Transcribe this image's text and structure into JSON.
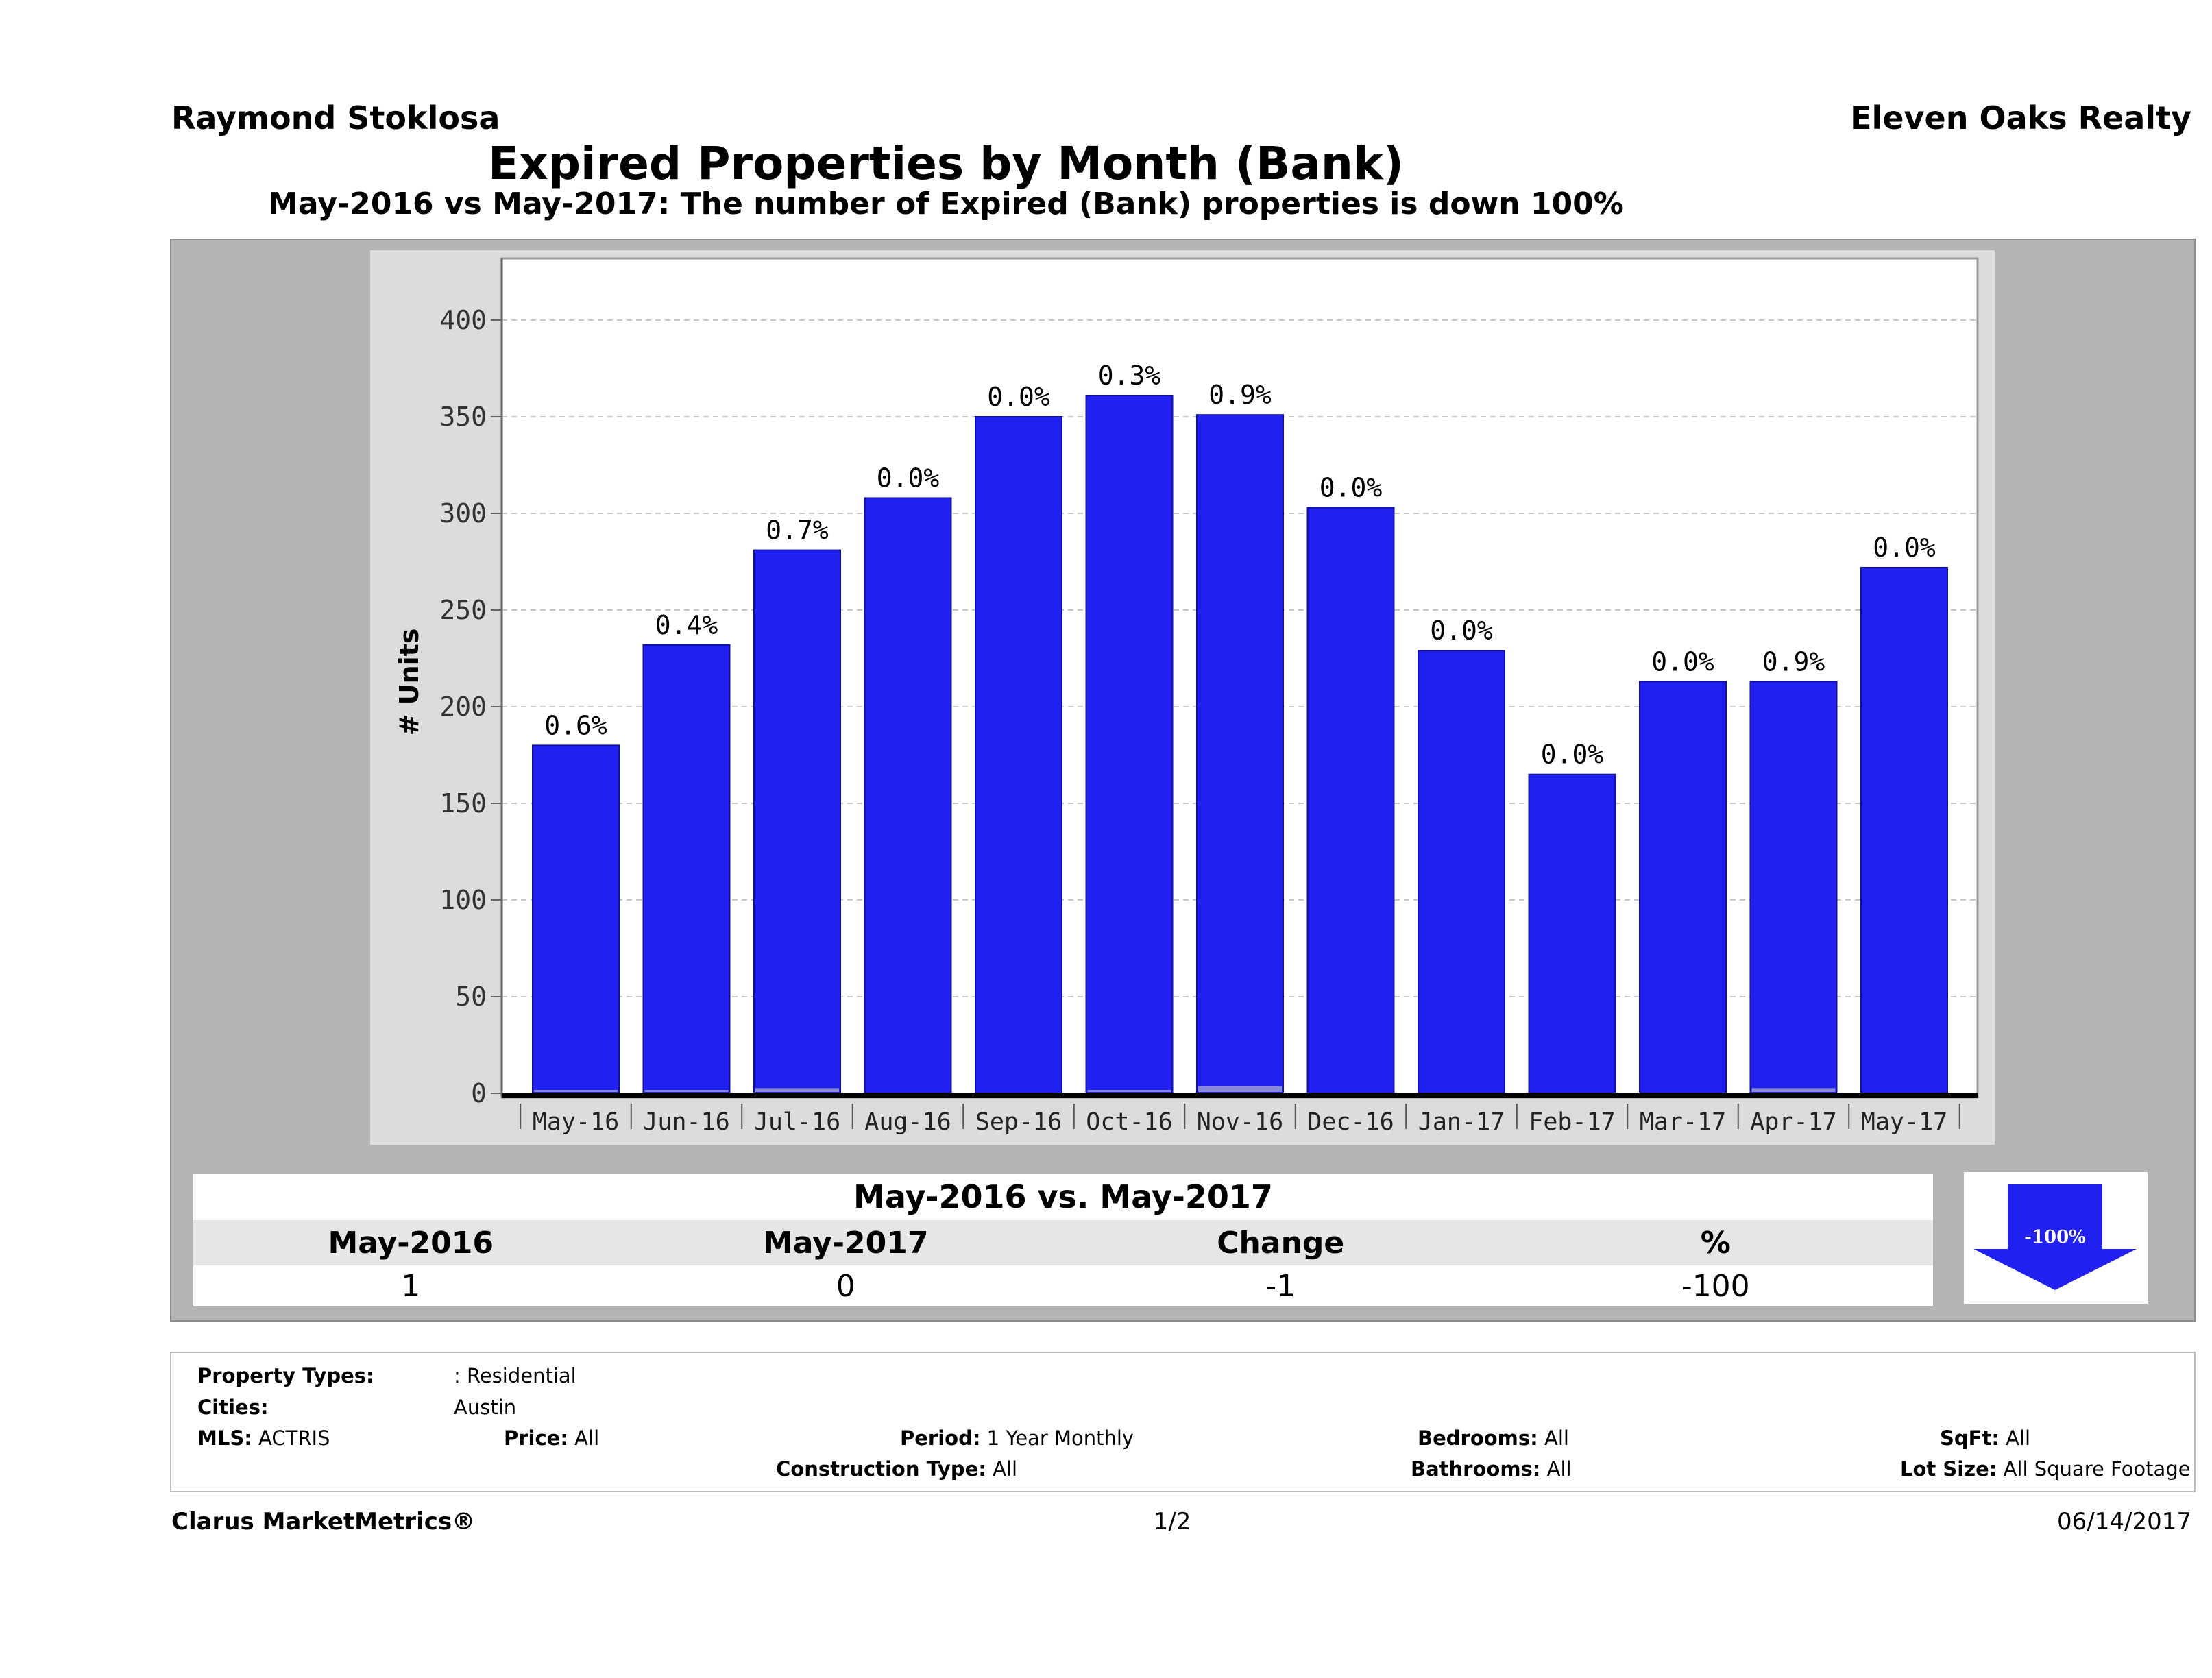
{
  "header": {
    "agent": "Raymond Stoklosa",
    "company": "Eleven Oaks Realty",
    "title": "Expired Properties by Month (Bank)",
    "subtitle": "May-2016 vs May-2017: The number of Expired (Bank)  properties is down 100%"
  },
  "chart_data": {
    "type": "bar",
    "ylabel": "# Units",
    "xlabel": "",
    "ylim": [
      0,
      430
    ],
    "yticks": [
      0,
      50,
      100,
      150,
      200,
      250,
      300,
      350,
      400
    ],
    "grid": true,
    "categories": [
      "May-16",
      "Jun-16",
      "Jul-16",
      "Aug-16",
      "Sep-16",
      "Oct-16",
      "Nov-16",
      "Dec-16",
      "Jan-17",
      "Feb-17",
      "Mar-17",
      "Apr-17",
      "May-17"
    ],
    "values": [
      180,
      232,
      281,
      308,
      350,
      361,
      351,
      303,
      229,
      165,
      213,
      213,
      272
    ],
    "bank_values": [
      1,
      1,
      2,
      0,
      0,
      1,
      3,
      0,
      0,
      0,
      0,
      2,
      0
    ],
    "data_labels": [
      "0.6%",
      "0.4%",
      "0.7%",
      "0.0%",
      "0.0%",
      "0.3%",
      "0.9%",
      "0.0%",
      "0.0%",
      "0.0%",
      "0.0%",
      "0.9%",
      "0.0%"
    ],
    "colors": {
      "bar": "#2020f0",
      "bank": "#8a8ad8",
      "axis": "#000000",
      "grid": "#c8c8c8"
    }
  },
  "comparison": {
    "title": "May-2016 vs. May-2017",
    "headers": [
      "May-2016",
      "May-2017",
      "Change",
      "%"
    ],
    "values": [
      "1",
      "0",
      "-1",
      "-100"
    ],
    "arrow_label": "-100%",
    "arrow_color": "#2020f0",
    "arrow_icon": "down-arrow-icon"
  },
  "filters": {
    "property_types_label": "Property Types:",
    "property_types_value": ": Residential",
    "cities_label": "Cities:",
    "cities_value": "Austin",
    "mls_label": "MLS:",
    "mls_value": "ACTRIS",
    "price_label": "Price:",
    "price_value": "All",
    "period_label": "Period:",
    "period_value": "1 Year Monthly",
    "construction_label": "Construction Type:",
    "construction_value": "All",
    "bedrooms_label": "Bedrooms:",
    "bedrooms_value": "All",
    "bathrooms_label": "Bathrooms:",
    "bathrooms_value": "All",
    "sqft_label": "SqFt:",
    "sqft_value": "All",
    "lotsize_label": "Lot Size:",
    "lotsize_value": "All Square Footage"
  },
  "footer": {
    "brand": "Clarus MarketMetrics®",
    "page": "1/2",
    "date": "06/14/2017"
  }
}
